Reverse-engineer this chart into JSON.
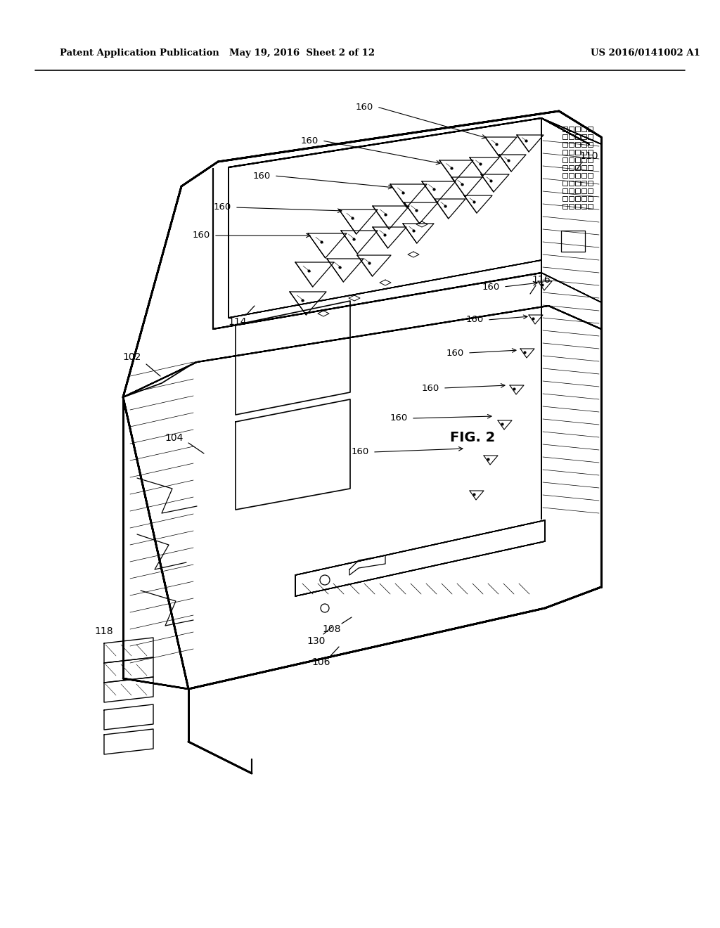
{
  "header_left": "Patent Application Publication",
  "header_center": "May 19, 2016  Sheet 2 of 12",
  "header_right": "US 2016/0141002 A1",
  "fig_label": "FIG. 2",
  "background_color": "#ffffff",
  "line_color": "#000000",
  "text_color": "#000000"
}
